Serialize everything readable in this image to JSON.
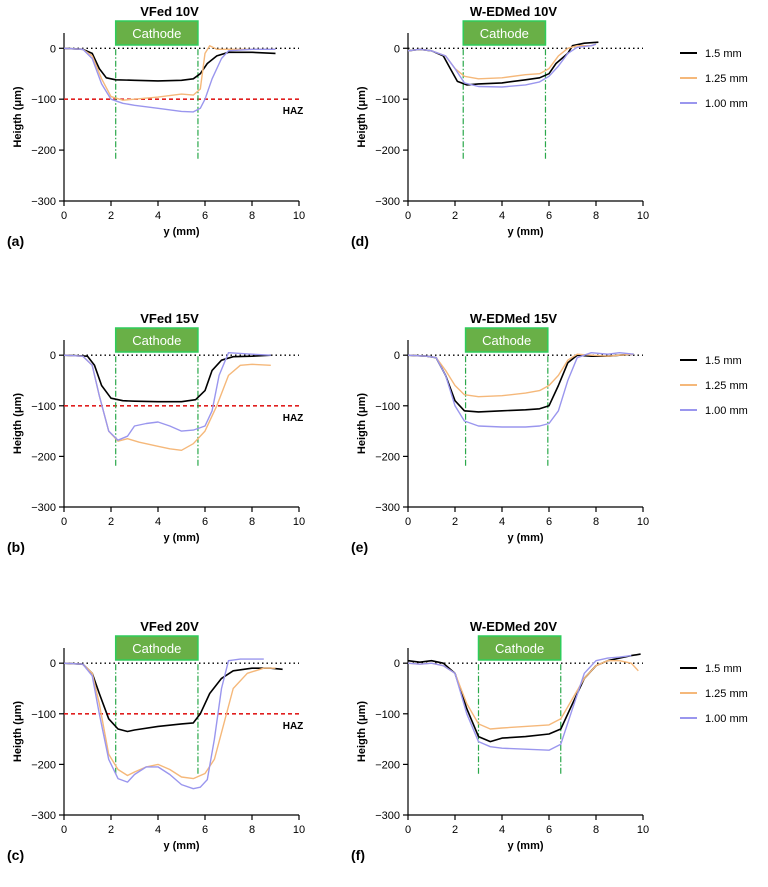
{
  "figure": {
    "legend": {
      "position": "right",
      "entries": [
        {
          "label": "1.5 mm",
          "color": "#000000"
        },
        {
          "label": "1.25 mm",
          "color": "#f5b87a"
        },
        {
          "label": "1.00 mm",
          "color": "#9a96ee"
        }
      ]
    },
    "colors": {
      "cathode_fill": "#69b047",
      "cathode_border": "#2fcc5a",
      "cathode_line": "#2aa84a",
      "haz_line": "#e01f1f"
    }
  },
  "chart_data": [
    {
      "id": "a",
      "panel_label": "(a)",
      "type": "line",
      "title": "VFed 10V",
      "xlabel": "y (mm)",
      "ylabel": "Heigth (μm)",
      "xlim": [
        0,
        10
      ],
      "ylim": [
        -300,
        30
      ],
      "xticks": [
        "0",
        "2",
        "4",
        "6",
        "8",
        "10"
      ],
      "yticks": [
        "0",
        "-100",
        "-200",
        "-300"
      ],
      "cathode": {
        "label": "Cathode",
        "x_start": 2.2,
        "x_end": 5.7
      },
      "haz": {
        "label": "HAZ",
        "y": -100
      },
      "series": [
        {
          "name": "1.5 mm",
          "color": "#000000",
          "x": [
            0,
            0.8,
            1.2,
            1.5,
            1.8,
            2.2,
            3,
            4,
            5,
            5.5,
            5.8,
            6.1,
            6.5,
            7,
            8,
            9
          ],
          "y": [
            0,
            -2,
            -10,
            -40,
            -58,
            -62,
            -63,
            -64,
            -63,
            -60,
            -50,
            -30,
            -15,
            -8,
            -8,
            -10
          ]
        },
        {
          "name": "1.25 mm",
          "color": "#f5b87a",
          "x": [
            0,
            0.8,
            1.2,
            1.6,
            2,
            2.5,
            3,
            4,
            5,
            5.5,
            5.8,
            6,
            6.2,
            6.5,
            7,
            8,
            9
          ],
          "y": [
            0,
            -2,
            -15,
            -60,
            -95,
            -102,
            -100,
            -96,
            -90,
            -92,
            -80,
            -10,
            5,
            -2,
            -2,
            -2,
            -2
          ]
        },
        {
          "name": "1.00 mm",
          "color": "#9a96ee",
          "x": [
            0,
            0.8,
            1.2,
            1.6,
            2,
            2.5,
            3,
            4,
            5,
            5.5,
            5.8,
            6,
            6.3,
            6.7,
            7,
            8,
            9
          ],
          "y": [
            0,
            -2,
            -20,
            -70,
            -100,
            -108,
            -112,
            -118,
            -124,
            -125,
            -118,
            -100,
            -60,
            -20,
            -5,
            -2,
            -2
          ]
        }
      ]
    },
    {
      "id": "d",
      "panel_label": "(d)",
      "type": "line",
      "title": "W-EDMed 10V",
      "xlabel": "y (mm)",
      "ylabel": "Heigth (μm)",
      "xlim": [
        0,
        10
      ],
      "ylim": [
        -300,
        30
      ],
      "xticks": [
        "0",
        "2",
        "4",
        "6",
        "8",
        "10"
      ],
      "yticks": [
        "0",
        "-100",
        "-200",
        "-300"
      ],
      "cathode": {
        "label": "Cathode",
        "x_start": 2.35,
        "x_end": 5.85
      },
      "series": [
        {
          "name": "1.5 mm",
          "color": "#000000",
          "x": [
            0,
            0.5,
            1,
            1.5,
            1.8,
            2.1,
            2.5,
            3,
            4,
            5,
            5.6,
            6,
            6.3,
            6.8,
            7,
            7.5,
            8.1
          ],
          "y": [
            -5,
            -2,
            -5,
            -15,
            -40,
            -65,
            -72,
            -70,
            -68,
            -62,
            -58,
            -50,
            -30,
            -10,
            5,
            10,
            12
          ]
        },
        {
          "name": "1.25 mm",
          "color": "#f5b87a",
          "x": [
            0,
            0.5,
            1,
            1.6,
            2,
            2.4,
            3,
            4,
            5,
            5.6,
            6,
            6.4,
            6.8,
            7.2,
            7.8,
            8
          ],
          "y": [
            -5,
            -2,
            -5,
            -15,
            -40,
            -55,
            -60,
            -58,
            -52,
            -50,
            -40,
            -15,
            0,
            5,
            5,
            8
          ]
        },
        {
          "name": "1.00 mm",
          "color": "#9a96ee",
          "x": [
            0,
            0.5,
            1,
            1.6,
            2,
            2.4,
            3,
            4,
            5,
            5.6,
            6,
            6.4,
            6.8,
            7.2,
            7.8,
            8
          ],
          "y": [
            -5,
            -2,
            -5,
            -15,
            -40,
            -68,
            -75,
            -76,
            -72,
            -66,
            -55,
            -35,
            -10,
            2,
            5,
            8
          ]
        }
      ]
    },
    {
      "id": "b",
      "panel_label": "(b)",
      "type": "line",
      "title": "VFed 15V",
      "xlabel": "y (mm)",
      "ylabel": "Heigth (μm)",
      "xlim": [
        0,
        10
      ],
      "ylim": [
        -300,
        30
      ],
      "xticks": [
        "0",
        "2",
        "4",
        "6",
        "8",
        "10"
      ],
      "yticks": [
        "0",
        "-100",
        "-200",
        "-300"
      ],
      "cathode": {
        "label": "Cathode",
        "x_start": 2.2,
        "x_end": 5.7
      },
      "haz": {
        "label": "HAZ",
        "y": -100
      },
      "series": [
        {
          "name": "1.5 mm",
          "color": "#000000",
          "x": [
            0,
            1,
            1.3,
            1.6,
            2,
            2.5,
            3,
            4,
            5,
            5.6,
            6,
            6.3,
            6.7,
            7.2,
            8,
            8.8
          ],
          "y": [
            0,
            -2,
            -20,
            -60,
            -85,
            -90,
            -91,
            -92,
            -92,
            -88,
            -70,
            -30,
            -10,
            -3,
            -2,
            0
          ]
        },
        {
          "name": "1.25 mm",
          "color": "#f5b87a",
          "x": [
            0,
            0.8,
            1.2,
            1.5,
            1.9,
            2.3,
            2.7,
            3.2,
            4,
            4.5,
            5,
            5.5,
            6,
            6.5,
            7,
            7.5,
            8,
            8.8
          ],
          "y": [
            0,
            -2,
            -20,
            -80,
            -150,
            -170,
            -165,
            -172,
            -180,
            -185,
            -188,
            -175,
            -150,
            -100,
            -40,
            -20,
            -18,
            -20
          ]
        },
        {
          "name": "1.00 mm",
          "color": "#9a96ee",
          "x": [
            0,
            0.8,
            1.2,
            1.5,
            1.9,
            2.3,
            2.7,
            3,
            3.5,
            4,
            4.5,
            5,
            5.5,
            6,
            6.3,
            6.6,
            7,
            8,
            8.8
          ],
          "y": [
            0,
            -2,
            -20,
            -80,
            -150,
            -168,
            -160,
            -140,
            -135,
            -132,
            -140,
            -150,
            -148,
            -140,
            -110,
            -40,
            5,
            2,
            0
          ]
        }
      ]
    },
    {
      "id": "e",
      "panel_label": "(e)",
      "type": "line",
      "title": "W-EDMed 15V",
      "xlabel": "y (mm)",
      "ylabel": "Heigth (μm)",
      "xlim": [
        0,
        10
      ],
      "ylim": [
        -300,
        30
      ],
      "xticks": [
        "0",
        "2",
        "4",
        "6",
        "8",
        "10"
      ],
      "yticks": [
        "0",
        "-100",
        "-200",
        "-300"
      ],
      "cathode": {
        "label": "Cathode",
        "x_start": 2.45,
        "x_end": 5.95
      },
      "series": [
        {
          "name": "1.5 mm",
          "color": "#000000",
          "x": [
            0,
            0.8,
            1.2,
            1.6,
            2,
            2.4,
            3,
            4,
            5,
            5.6,
            6,
            6.4,
            6.8,
            7.2,
            7.8,
            8.5,
            9,
            9.6
          ],
          "y": [
            0,
            -2,
            -5,
            -40,
            -90,
            -110,
            -112,
            -110,
            -108,
            -106,
            -100,
            -60,
            -15,
            0,
            -2,
            -2,
            0,
            2
          ]
        },
        {
          "name": "1.25 mm",
          "color": "#f5b87a",
          "x": [
            0,
            0.8,
            1.2,
            1.6,
            2,
            2.4,
            3,
            4,
            5,
            5.6,
            6,
            6.4,
            6.8,
            7.2,
            7.8,
            8.5,
            9,
            9.6
          ],
          "y": [
            0,
            -2,
            -5,
            -30,
            -60,
            -78,
            -82,
            -80,
            -75,
            -70,
            -60,
            -40,
            -10,
            2,
            0,
            -2,
            0,
            2
          ]
        },
        {
          "name": "1.00 mm",
          "color": "#9a96ee",
          "x": [
            0,
            0.8,
            1.2,
            1.6,
            2,
            2.4,
            3,
            4,
            5,
            5.6,
            6,
            6.4,
            6.8,
            7.2,
            7.8,
            8.5,
            9,
            9.6
          ],
          "y": [
            0,
            -2,
            -5,
            -40,
            -100,
            -130,
            -140,
            -142,
            -142,
            -140,
            -135,
            -110,
            -50,
            -5,
            5,
            2,
            5,
            2
          ]
        }
      ]
    },
    {
      "id": "c",
      "panel_label": "(c)",
      "type": "line",
      "title": "VFed 20V",
      "xlabel": "y (mm)",
      "ylabel": "Heigth (μm)",
      "xlim": [
        0,
        10
      ],
      "ylim": [
        -300,
        30
      ],
      "xticks": [
        "0",
        "2",
        "4",
        "6",
        "8",
        "10"
      ],
      "yticks": [
        "0",
        "-100",
        "-200",
        "-300"
      ],
      "cathode": {
        "label": "Cathode",
        "x_start": 2.2,
        "x_end": 5.7
      },
      "haz": {
        "label": "HAZ",
        "y": -100
      },
      "series": [
        {
          "name": "1.5 mm",
          "color": "#000000",
          "x": [
            0,
            0.8,
            1.2,
            1.5,
            1.9,
            2.3,
            2.7,
            3,
            4,
            5,
            5.5,
            5.8,
            6.2,
            6.7,
            7.2,
            8,
            8.8,
            9.3
          ],
          "y": [
            0,
            -2,
            -20,
            -60,
            -110,
            -130,
            -135,
            -132,
            -125,
            -120,
            -118,
            -100,
            -60,
            -30,
            -15,
            -10,
            -10,
            -12
          ]
        },
        {
          "name": "1.25 mm",
          "color": "#f5b87a",
          "x": [
            0,
            0.8,
            1.2,
            1.5,
            1.9,
            2.3,
            2.7,
            3,
            3.5,
            4,
            4.5,
            5,
            5.5,
            6,
            6.4,
            6.8,
            7.2,
            7.8,
            8.5,
            9
          ],
          "y": [
            0,
            -2,
            -20,
            -80,
            -180,
            -210,
            -222,
            -215,
            -205,
            -200,
            -210,
            -225,
            -228,
            -218,
            -190,
            -120,
            -50,
            -20,
            -10,
            -10
          ]
        },
        {
          "name": "1.00 mm",
          "color": "#9a96ee",
          "x": [
            0,
            0.8,
            1.2,
            1.5,
            1.9,
            2.3,
            2.7,
            3,
            3.5,
            4,
            4.5,
            5,
            5.5,
            5.8,
            6.1,
            6.4,
            6.7,
            7,
            7.5,
            8.5
          ],
          "y": [
            0,
            -2,
            -25,
            -100,
            -190,
            -228,
            -235,
            -220,
            -205,
            -205,
            -220,
            -240,
            -248,
            -245,
            -230,
            -150,
            -50,
            5,
            8,
            8
          ]
        }
      ]
    },
    {
      "id": "f",
      "panel_label": "(f)",
      "type": "line",
      "title": "W-EDMed 20V",
      "xlabel": "y (mm)",
      "ylabel": "Heigth (μm)",
      "xlim": [
        0,
        10
      ],
      "ylim": [
        -300,
        30
      ],
      "xticks": [
        "0",
        "2",
        "4",
        "6",
        "8",
        "10"
      ],
      "yticks": [
        "0",
        "-100",
        "-200",
        "-300"
      ],
      "cathode": {
        "label": "Cathode",
        "x_start": 3.0,
        "x_end": 6.5
      },
      "series": [
        {
          "name": "1.5 mm",
          "color": "#000000",
          "x": [
            0,
            0.5,
            1,
            1.5,
            2,
            2.5,
            3,
            3.5,
            4,
            5,
            6,
            6.5,
            7,
            7.5,
            8,
            8.5,
            9,
            9.5,
            9.9
          ],
          "y": [
            5,
            2,
            5,
            0,
            -20,
            -90,
            -145,
            -155,
            -148,
            -145,
            -140,
            -130,
            -80,
            -30,
            -5,
            5,
            10,
            15,
            18
          ]
        },
        {
          "name": "1.25 mm",
          "color": "#f5b87a",
          "x": [
            0,
            0.5,
            1,
            1.5,
            2,
            2.5,
            3,
            3.5,
            4,
            5,
            6,
            6.5,
            7,
            7.5,
            8,
            8.5,
            9,
            9.5,
            9.8
          ],
          "y": [
            0,
            -2,
            0,
            -5,
            -20,
            -80,
            -120,
            -130,
            -128,
            -125,
            -122,
            -110,
            -70,
            -30,
            -5,
            5,
            5,
            0,
            -15
          ]
        },
        {
          "name": "1.00 mm",
          "color": "#9a96ee",
          "x": [
            0,
            0.5,
            1,
            1.5,
            2,
            2.5,
            3,
            3.5,
            4,
            5,
            6,
            6.5,
            7,
            7.5,
            8,
            8.5,
            9,
            9.5
          ],
          "y": [
            0,
            -2,
            0,
            -5,
            -20,
            -100,
            -155,
            -165,
            -168,
            -170,
            -172,
            -160,
            -90,
            -20,
            5,
            10,
            12,
            15
          ]
        }
      ]
    }
  ]
}
